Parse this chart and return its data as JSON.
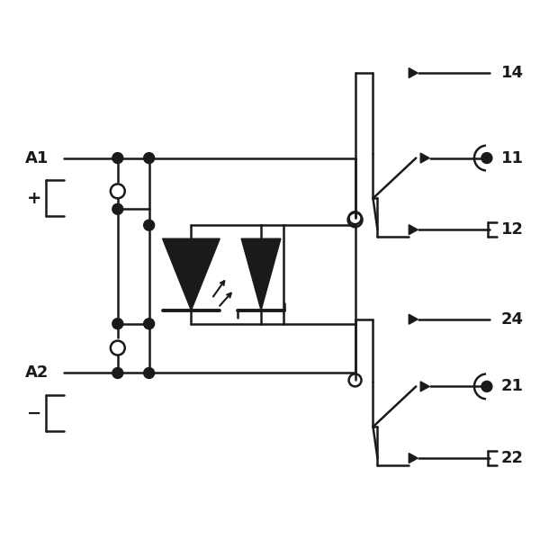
{
  "bg_color": "#ffffff",
  "line_color": "#1a1a1a",
  "lw": 1.8,
  "dot_r": 0.008,
  "figsize": [
    6.0,
    6.0
  ],
  "dpi": 100
}
